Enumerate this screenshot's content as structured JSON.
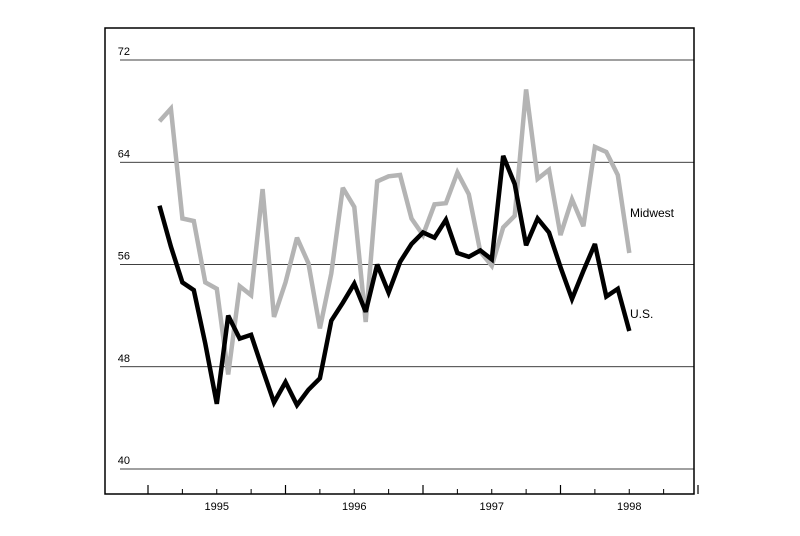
{
  "chart_data": {
    "type": "line",
    "title": "",
    "xlabel": "",
    "ylabel": "",
    "ylim": [
      40,
      72
    ],
    "yticks": [
      40,
      48,
      56,
      64,
      72
    ],
    "xticks": [
      {
        "x": 1995.0,
        "label": "1995"
      },
      {
        "x": 1996.0,
        "label": "1996"
      },
      {
        "x": 1997.0,
        "label": "1997"
      },
      {
        "x": 1998.0,
        "label": "1998"
      }
    ],
    "xlim": [
      1994.5,
      1998.5
    ],
    "grid": true,
    "series": [
      {
        "name": "U.S.",
        "color": "#000000",
        "x": [
          1994.5833,
          1994.6667,
          1994.75,
          1994.8333,
          1994.9167,
          1995.0,
          1995.0833,
          1995.1667,
          1995.25,
          1995.3333,
          1995.4167,
          1995.5,
          1995.5833,
          1995.6667,
          1995.75,
          1995.8333,
          1995.9167,
          1996.0,
          1996.0833,
          1996.1667,
          1996.25,
          1996.3333,
          1996.4167,
          1996.5,
          1996.5833,
          1996.6667,
          1996.75,
          1996.8333,
          1996.9167,
          1997.0,
          1997.0833,
          1997.1667,
          1997.25,
          1997.3333,
          1997.4167,
          1997.5,
          1997.5833,
          1997.6667,
          1997.75,
          1997.8333,
          1997.9167,
          1998.0
        ],
        "values": [
          60.6,
          57.4,
          54.6,
          54.0,
          49.8,
          45.1,
          52.0,
          50.2,
          50.5,
          47.8,
          45.2,
          46.8,
          45.0,
          46.2,
          47.1,
          51.6,
          53.0,
          54.5,
          52.3,
          56.0,
          53.8,
          56.2,
          57.6,
          58.5,
          58.1,
          59.5,
          56.9,
          56.6,
          57.1,
          56.4,
          64.5,
          62.3,
          57.5,
          59.6,
          58.5,
          55.8,
          53.3,
          55.5,
          57.6,
          53.5,
          54.1,
          50.8
        ],
        "label_position": "right"
      },
      {
        "name": "Midwest",
        "color": "#b4b4b4",
        "x": [
          1994.5833,
          1994.6667,
          1994.75,
          1994.8333,
          1994.9167,
          1995.0,
          1995.0833,
          1995.1667,
          1995.25,
          1995.3333,
          1995.4167,
          1995.5,
          1995.5833,
          1995.6667,
          1995.75,
          1995.8333,
          1995.9167,
          1996.0,
          1996.0833,
          1996.1667,
          1996.25,
          1996.3333,
          1996.4167,
          1996.5,
          1996.5833,
          1996.6667,
          1996.75,
          1996.8333,
          1996.9167,
          1997.0,
          1997.0833,
          1997.1667,
          1997.25,
          1997.3333,
          1997.4167,
          1997.5,
          1997.5833,
          1997.6667,
          1997.75,
          1997.8333,
          1997.9167,
          1998.0
        ],
        "values": [
          67.2,
          68.2,
          59.6,
          59.4,
          54.6,
          54.1,
          47.4,
          54.3,
          53.6,
          61.9,
          51.9,
          54.6,
          58.1,
          56.1,
          51.0,
          55.3,
          62.0,
          60.5,
          51.5,
          62.5,
          62.9,
          63.0,
          59.6,
          58.3,
          60.7,
          60.8,
          63.2,
          61.5,
          57.0,
          55.9,
          58.9,
          59.8,
          69.7,
          62.7,
          63.4,
          58.3,
          61.1,
          59.0,
          65.2,
          64.8,
          63.0,
          56.9
        ],
        "label_position": "right"
      }
    ]
  }
}
